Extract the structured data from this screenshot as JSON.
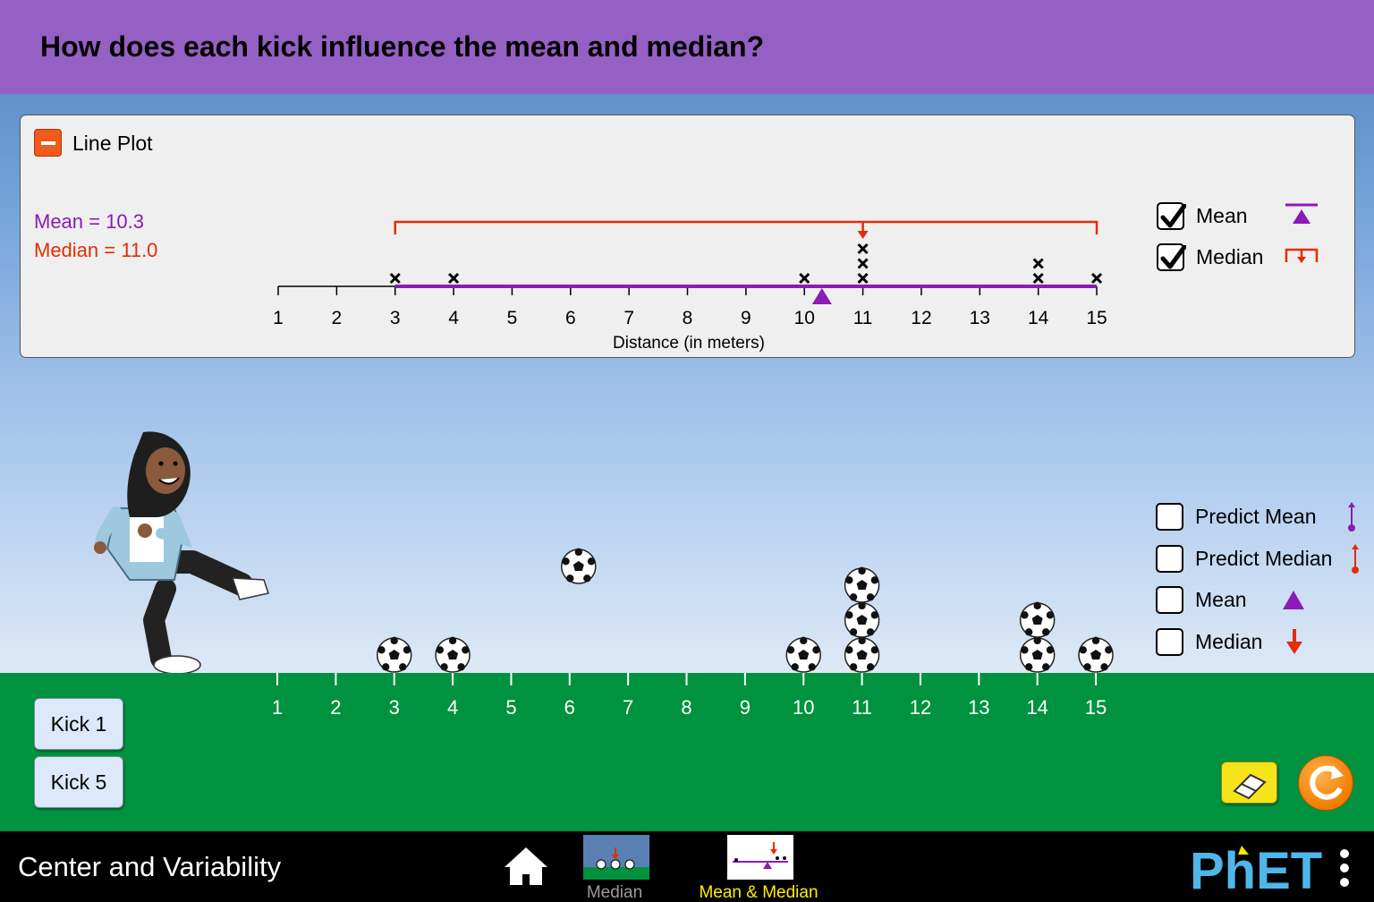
{
  "header": {
    "title": "How does each kick influence the mean and median?"
  },
  "line_plot": {
    "title": "Line Plot",
    "mean_readout": "Mean = 10.3",
    "median_readout": "Median = 11.0",
    "axis_label": "Distance (in meters)",
    "ticks": [
      "1",
      "2",
      "3",
      "4",
      "5",
      "6",
      "7",
      "8",
      "9",
      "10",
      "11",
      "12",
      "13",
      "14",
      "15"
    ],
    "mean_value": 10.3,
    "median_value": 11.0,
    "range": [
      3,
      15
    ],
    "data_counts": {
      "3": 1,
      "4": 1,
      "10": 1,
      "11": 3,
      "14": 2,
      "15": 1
    },
    "checkboxes": [
      {
        "label": "Mean",
        "checked": true,
        "icon": "mean-triangle-icon"
      },
      {
        "label": "Median",
        "checked": true,
        "icon": "median-arrow-icon"
      }
    ]
  },
  "field": {
    "ticks": [
      "1",
      "2",
      "3",
      "4",
      "5",
      "6",
      "7",
      "8",
      "9",
      "10",
      "11",
      "12",
      "13",
      "14",
      "15"
    ],
    "balls_landed": {
      "3": 1,
      "4": 1,
      "10": 1,
      "11": 3,
      "14": 2,
      "15": 1
    },
    "ball_in_flight": 6,
    "checkboxes": [
      {
        "label": "Predict Mean",
        "checked": false,
        "icon": "predict-mean-icon"
      },
      {
        "label": "Predict Median",
        "checked": false,
        "icon": "predict-median-icon"
      },
      {
        "label": "Mean",
        "checked": false,
        "icon": "mean-triangle-icon"
      },
      {
        "label": "Median",
        "checked": false,
        "icon": "median-arrow-icon"
      }
    ]
  },
  "controls": {
    "kick1_label": "Kick 1",
    "kick5_label": "Kick 5"
  },
  "navbar": {
    "sim_title": "Center and Variability",
    "screens": [
      {
        "label": "Median",
        "selected": false
      },
      {
        "label": "Mean & Median",
        "selected": true
      }
    ],
    "selected_color": "#ffee00",
    "unselected_color": "#9b9b9b"
  },
  "colors": {
    "mean": "#8b1bb5",
    "median": "#e22d07",
    "header": "#9560c4",
    "ground": "#00923f"
  }
}
